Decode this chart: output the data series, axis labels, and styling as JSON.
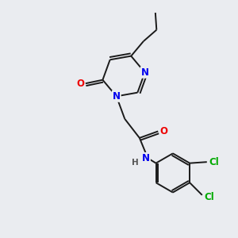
{
  "background_color": "#eaecf0",
  "bond_color": "#1a1a1a",
  "atom_colors": {
    "N": "#0000ee",
    "O": "#ee0000",
    "Cl": "#00aa00",
    "H": "#555555",
    "C": "#1a1a1a"
  },
  "font_size_atoms": 8.5,
  "font_size_small": 7.5,
  "lw": 1.4
}
